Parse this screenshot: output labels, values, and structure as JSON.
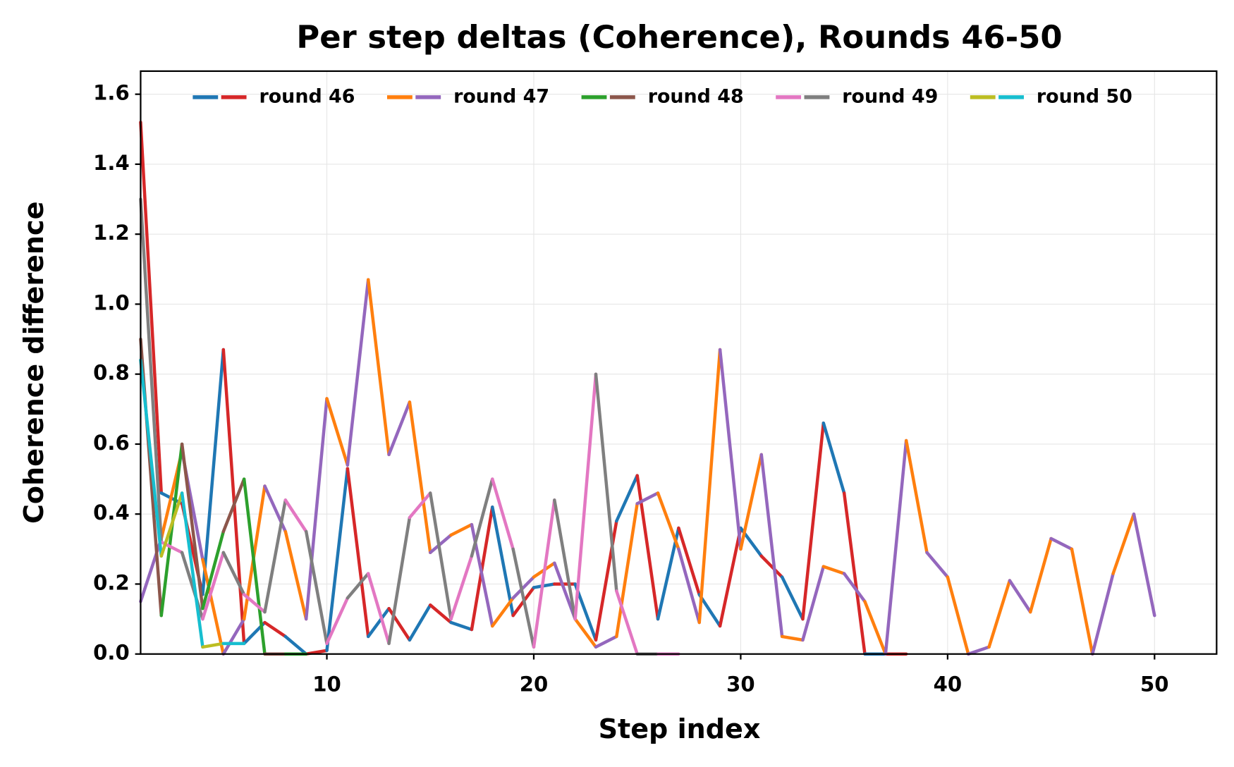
{
  "chart_data": {
    "type": "line",
    "title": "Per step deltas (Coherence), Rounds 46-50",
    "x_label": "Step index",
    "y_label": "Coherence difference",
    "xlim": [
      1,
      53
    ],
    "ylim": [
      0,
      1.666
    ],
    "xticks": [
      10,
      20,
      30,
      40,
      50
    ],
    "yticks": [
      {
        "value": 0,
        "label": "0.0"
      },
      {
        "value": 0.2,
        "label": "0.2"
      },
      {
        "value": 0.4,
        "label": "0.4"
      },
      {
        "value": 0.6,
        "label": "0.6"
      },
      {
        "value": 0.8,
        "label": "0.8"
      },
      {
        "value": 1.0,
        "label": "1.0"
      },
      {
        "value": 1.2,
        "label": "1.2"
      },
      {
        "value": 1.4,
        "label": "1.4"
      },
      {
        "value": 1.6,
        "label": "1.6"
      }
    ],
    "grid": true,
    "legend": "upper center",
    "series": [
      {
        "name": "round 46",
        "colors": [
          "#d62728",
          "#1f77b4"
        ],
        "x": [
          1,
          2,
          3,
          4,
          5,
          6,
          7,
          8,
          9,
          10,
          11,
          12,
          13,
          14,
          15,
          16,
          17,
          18,
          19,
          20,
          21,
          22,
          23,
          24,
          25,
          26,
          27,
          28,
          29,
          30,
          31,
          32,
          33,
          34,
          35,
          36,
          37,
          38
        ],
        "values": [
          1.52,
          0.46,
          0.43,
          0.17,
          0.87,
          0.03,
          0.09,
          0.05,
          0.0,
          0.01,
          0.53,
          0.05,
          0.13,
          0.04,
          0.14,
          0.09,
          0.07,
          0.42,
          0.11,
          0.19,
          0.2,
          0.2,
          0.04,
          0.38,
          0.51,
          0.1,
          0.36,
          0.17,
          0.08,
          0.36,
          0.28,
          0.22,
          0.1,
          0.66,
          0.46,
          0.0,
          0.0,
          0.0
        ]
      },
      {
        "name": "round 47",
        "colors": [
          "#9467bd",
          "#ff7f0e"
        ],
        "x": [
          1,
          2,
          3,
          4,
          5,
          6,
          7,
          8,
          9,
          10,
          11,
          12,
          13,
          14,
          15,
          16,
          17,
          18,
          19,
          20,
          21,
          22,
          23,
          24,
          25,
          26,
          27,
          28,
          29,
          30,
          31,
          32,
          33,
          34,
          35,
          36,
          37,
          38,
          39,
          40,
          41,
          42,
          43,
          44,
          45,
          46,
          47,
          48,
          49,
          50
        ],
        "values": [
          0.15,
          0.33,
          0.58,
          0.27,
          0.0,
          0.1,
          0.48,
          0.35,
          0.1,
          0.73,
          0.54,
          1.07,
          0.57,
          0.72,
          0.29,
          0.34,
          0.37,
          0.08,
          0.16,
          0.22,
          0.26,
          0.1,
          0.02,
          0.05,
          0.43,
          0.46,
          0.3,
          0.09,
          0.87,
          0.3,
          0.57,
          0.05,
          0.04,
          0.25,
          0.23,
          0.15,
          0.0,
          0.61,
          0.29,
          0.22,
          0.0,
          0.02,
          0.21,
          0.12,
          0.33,
          0.3,
          0.0,
          0.23,
          0.4,
          0.11
        ]
      },
      {
        "name": "round 48",
        "colors": [
          "#8c564b",
          "#2ca02c"
        ],
        "x": [
          1,
          2,
          3,
          4,
          5,
          6,
          7,
          8,
          9
        ],
        "values": [
          0.9,
          0.11,
          0.6,
          0.13,
          0.35,
          0.5,
          0.0,
          0.0,
          0.0
        ]
      },
      {
        "name": "round 49",
        "colors": [
          "#7f7f7f",
          "#e377c2"
        ],
        "x": [
          1,
          2,
          3,
          4,
          5,
          6,
          7,
          8,
          9,
          10,
          11,
          12,
          13,
          14,
          15,
          16,
          17,
          18,
          19,
          20,
          21,
          22,
          23,
          24,
          25,
          26,
          27
        ],
        "values": [
          1.3,
          0.32,
          0.29,
          0.1,
          0.29,
          0.17,
          0.12,
          0.44,
          0.35,
          0.03,
          0.16,
          0.23,
          0.03,
          0.39,
          0.46,
          0.1,
          0.28,
          0.5,
          0.3,
          0.02,
          0.44,
          0.1,
          0.8,
          0.18,
          0.0,
          0.0,
          0.0
        ]
      },
      {
        "name": "round 50",
        "colors": [
          "#17becf",
          "#bcbd22"
        ],
        "x": [
          1,
          2,
          3,
          4,
          5,
          6
        ],
        "values": [
          0.84,
          0.28,
          0.46,
          0.02,
          0.03,
          0.03
        ]
      }
    ]
  }
}
